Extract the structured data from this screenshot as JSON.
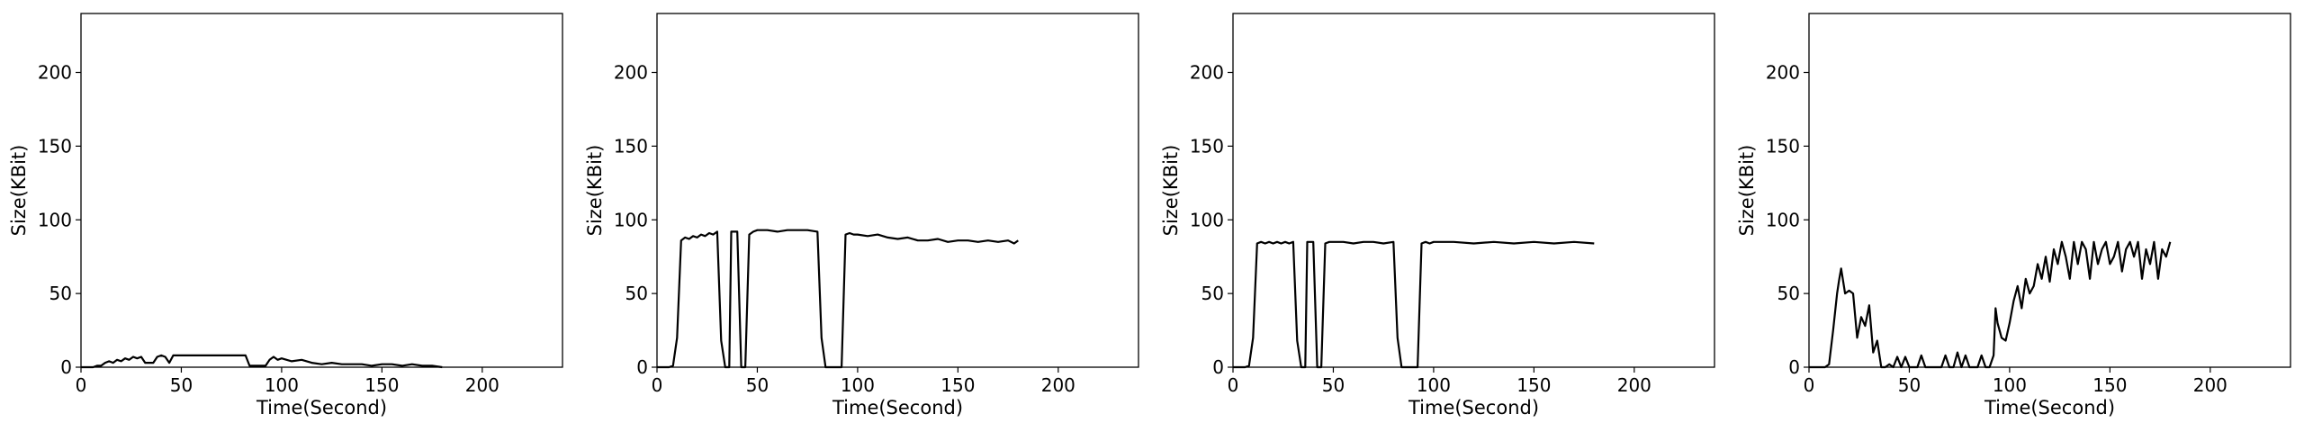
{
  "chart_data": [
    {
      "type": "line",
      "xlabel": "Time(Second)",
      "ylabel": "Size(KBit)",
      "xlim": [
        0,
        240
      ],
      "ylim": [
        0,
        240
      ],
      "xticks": [
        0,
        50,
        100,
        150,
        200
      ],
      "yticks": [
        0,
        50,
        100,
        150,
        200
      ],
      "grid": false,
      "series": [
        {
          "x": [
            0,
            2,
            4,
            6,
            8,
            10,
            12,
            14,
            16,
            18,
            20,
            22,
            24,
            26,
            28,
            30,
            32,
            34,
            36,
            38,
            40,
            42,
            44,
            46,
            48,
            50,
            55,
            60,
            65,
            70,
            75,
            80,
            82,
            84,
            86,
            88,
            90,
            92,
            94,
            96,
            98,
            100,
            105,
            110,
            115,
            120,
            125,
            130,
            135,
            140,
            145,
            150,
            155,
            160,
            165,
            170,
            175,
            180
          ],
          "y": [
            0,
            0,
            0,
            0,
            1,
            1,
            3,
            4,
            3,
            5,
            4,
            6,
            5,
            7,
            6,
            7,
            3,
            3,
            3,
            7,
            8,
            7,
            3,
            8,
            8,
            8,
            8,
            8,
            8,
            8,
            8,
            8,
            8,
            1,
            1,
            1,
            1,
            1,
            5,
            7,
            5,
            6,
            4,
            5,
            3,
            2,
            3,
            2,
            2,
            2,
            1,
            2,
            2,
            1,
            2,
            1,
            1,
            0
          ]
        }
      ]
    },
    {
      "type": "line",
      "xlabel": "Time(Second)",
      "ylabel": "Size(KBit)",
      "xlim": [
        0,
        240
      ],
      "ylim": [
        0,
        240
      ],
      "xticks": [
        0,
        50,
        100,
        150,
        200
      ],
      "yticks": [
        0,
        50,
        100,
        150,
        200
      ],
      "grid": false,
      "series": [
        {
          "x": [
            0,
            2,
            4,
            6,
            8,
            10,
            12,
            14,
            16,
            18,
            20,
            22,
            24,
            26,
            28,
            30,
            32,
            34,
            36,
            37,
            38,
            40,
            42,
            44,
            46,
            48,
            50,
            55,
            60,
            65,
            70,
            75,
            80,
            82,
            84,
            86,
            88,
            90,
            92,
            94,
            96,
            98,
            100,
            105,
            110,
            115,
            120,
            125,
            130,
            135,
            140,
            145,
            150,
            155,
            160,
            165,
            170,
            175,
            178,
            180
          ],
          "y": [
            0,
            0,
            0,
            0,
            1,
            20,
            86,
            88,
            87,
            89,
            88,
            90,
            89,
            91,
            90,
            92,
            18,
            0,
            0,
            92,
            92,
            92,
            0,
            0,
            90,
            92,
            93,
            93,
            92,
            93,
            93,
            93,
            92,
            20,
            0,
            0,
            0,
            0,
            0,
            90,
            91,
            90,
            90,
            89,
            90,
            88,
            87,
            88,
            86,
            86,
            87,
            85,
            86,
            86,
            85,
            86,
            85,
            86,
            84,
            86
          ]
        }
      ]
    },
    {
      "type": "line",
      "xlabel": "Time(Second)",
      "ylabel": "Size(KBit)",
      "xlim": [
        0,
        240
      ],
      "ylim": [
        0,
        240
      ],
      "xticks": [
        0,
        50,
        100,
        150,
        200
      ],
      "yticks": [
        0,
        50,
        100,
        150,
        200
      ],
      "grid": false,
      "series": [
        {
          "x": [
            0,
            2,
            4,
            6,
            8,
            10,
            12,
            14,
            16,
            18,
            20,
            22,
            24,
            26,
            28,
            30,
            32,
            34,
            36,
            37,
            38,
            40,
            42,
            44,
            46,
            48,
            50,
            55,
            60,
            65,
            70,
            75,
            80,
            82,
            84,
            86,
            88,
            90,
            92,
            94,
            96,
            98,
            100,
            110,
            120,
            130,
            140,
            150,
            160,
            170,
            180
          ],
          "y": [
            0,
            0,
            0,
            0,
            1,
            20,
            84,
            85,
            84,
            85,
            84,
            85,
            84,
            85,
            84,
            85,
            18,
            0,
            0,
            85,
            85,
            85,
            0,
            0,
            84,
            85,
            85,
            85,
            84,
            85,
            85,
            84,
            85,
            20,
            0,
            0,
            0,
            0,
            0,
            84,
            85,
            84,
            85,
            85,
            84,
            85,
            84,
            85,
            84,
            85,
            84
          ]
        }
      ]
    },
    {
      "type": "line",
      "xlabel": "Time(Second)",
      "ylabel": "Size(KBit)",
      "xlim": [
        0,
        240
      ],
      "ylim": [
        0,
        240
      ],
      "xticks": [
        0,
        50,
        100,
        150,
        200
      ],
      "yticks": [
        0,
        50,
        100,
        150,
        200
      ],
      "grid": false,
      "series": [
        {
          "x": [
            0,
            4,
            8,
            10,
            12,
            14,
            15,
            16,
            18,
            20,
            22,
            24,
            26,
            28,
            30,
            32,
            34,
            36,
            38,
            40,
            42,
            44,
            46,
            48,
            50,
            52,
            54,
            56,
            58,
            60,
            62,
            64,
            66,
            68,
            70,
            72,
            74,
            76,
            78,
            80,
            82,
            84,
            86,
            88,
            90,
            92,
            93,
            94,
            96,
            98,
            100,
            102,
            104,
            106,
            108,
            110,
            112,
            114,
            116,
            118,
            120,
            122,
            124,
            126,
            128,
            130,
            132,
            134,
            136,
            138,
            140,
            142,
            144,
            146,
            148,
            150,
            152,
            154,
            156,
            158,
            160,
            162,
            164,
            166,
            168,
            170,
            172,
            174,
            176,
            178,
            180
          ],
          "y": [
            0,
            0,
            0,
            2,
            25,
            50,
            59,
            67,
            50,
            52,
            50,
            20,
            34,
            28,
            42,
            10,
            18,
            0,
            0,
            2,
            0,
            7,
            0,
            7,
            0,
            0,
            0,
            8,
            0,
            0,
            0,
            0,
            0,
            8,
            0,
            0,
            10,
            0,
            8,
            0,
            0,
            0,
            8,
            0,
            0,
            8,
            40,
            30,
            20,
            18,
            30,
            45,
            55,
            40,
            60,
            50,
            55,
            70,
            60,
            75,
            58,
            80,
            70,
            85,
            75,
            60,
            85,
            70,
            85,
            80,
            60,
            85,
            70,
            80,
            85,
            70,
            75,
            85,
            65,
            80,
            85,
            75,
            85,
            60,
            80,
            70,
            85,
            60,
            80,
            75,
            85
          ]
        }
      ]
    }
  ]
}
